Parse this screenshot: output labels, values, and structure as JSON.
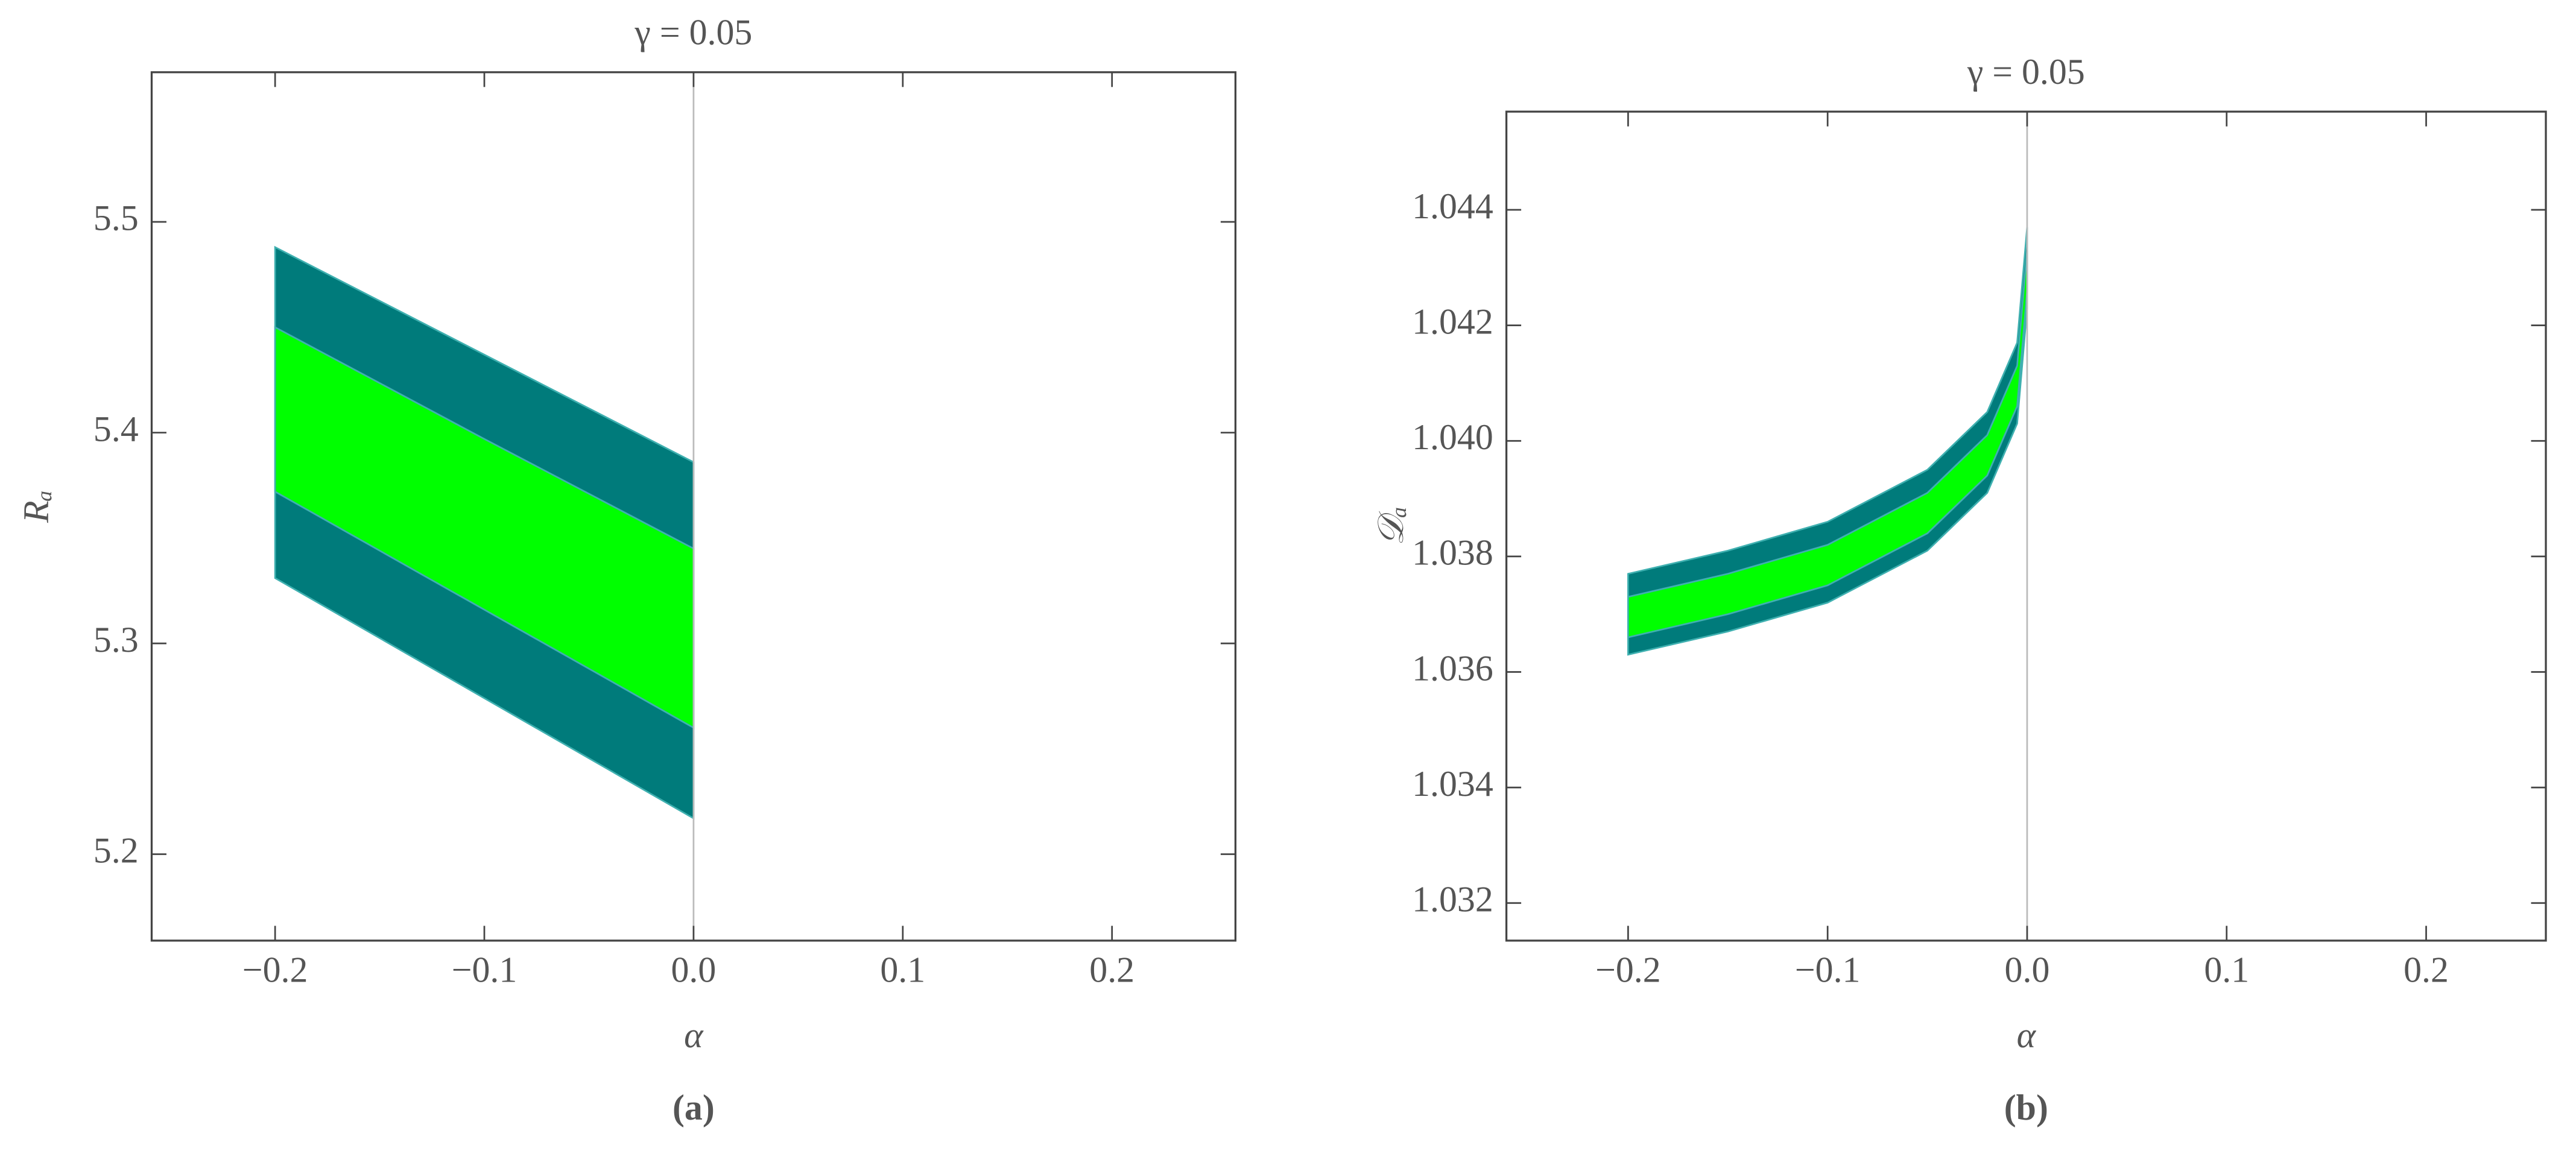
{
  "chart_data": [
    {
      "type": "band",
      "title": "γ = 0.05",
      "xlabel": "α",
      "ylabel": "Rₐ",
      "caption": "(a)",
      "x": [
        -0.2,
        -0.1,
        0
      ],
      "series": [
        {
          "color": "#007b7b",
          "upper": [
            5.488,
            5.437,
            5.386
          ],
          "lower": [
            5.331,
            5.274,
            5.217
          ]
        },
        {
          "color": "#00ff00",
          "upper": [
            5.45,
            5.397,
            5.345
          ],
          "lower": [
            5.372,
            5.316,
            5.26
          ]
        }
      ],
      "xlim": [
        -0.259,
        0.259
      ],
      "ylim": [
        5.159,
        5.571
      ],
      "xticks": [
        {
          "value": -0.2,
          "label": "−0.2"
        },
        {
          "value": -0.1,
          "label": "−0.1"
        },
        {
          "value": 0,
          "label": "0.0"
        },
        0.1,
        0.2
      ],
      "yticks": [
        5.2,
        5.3,
        5.4,
        5.5
      ]
    },
    {
      "type": "band",
      "title": "γ = 0.05",
      "xlabel": "α",
      "ylabel": "𝒟ₐ",
      "caption": "(b)",
      "x": [
        -0.2,
        -0.15,
        -0.1,
        -0.05,
        -0.02,
        -0.005,
        0
      ],
      "series": [
        {
          "color": "#007b7b",
          "upper": [
            1.0377,
            1.0381,
            1.0386,
            1.0395,
            1.0405,
            1.0417,
            1.0437
          ],
          "lower": [
            1.0363,
            1.0367,
            1.0372,
            1.0381,
            1.0391,
            1.0403,
            1.0423
          ]
        },
        {
          "color": "#00ff00",
          "upper": [
            1.0373,
            1.0377,
            1.0382,
            1.0391,
            1.0401,
            1.0413,
            1.0433
          ],
          "lower": [
            1.0366,
            1.037,
            1.0375,
            1.0384,
            1.0394,
            1.0406,
            1.0426
          ]
        }
      ],
      "xlim": [
        -0.261,
        0.26
      ],
      "ylim": [
        1.03135,
        1.0457
      ],
      "xticks": [
        {
          "value": -0.2,
          "label": "−0.2"
        },
        {
          "value": -0.1,
          "label": "−0.1"
        },
        {
          "value": 0,
          "label": "0.0"
        },
        0.1,
        0.2
      ],
      "yticks": [
        1.032,
        1.034,
        1.036,
        1.038,
        {
          "value": 1.04,
          "label": "1.040"
        },
        1.042,
        1.044
      ]
    }
  ]
}
